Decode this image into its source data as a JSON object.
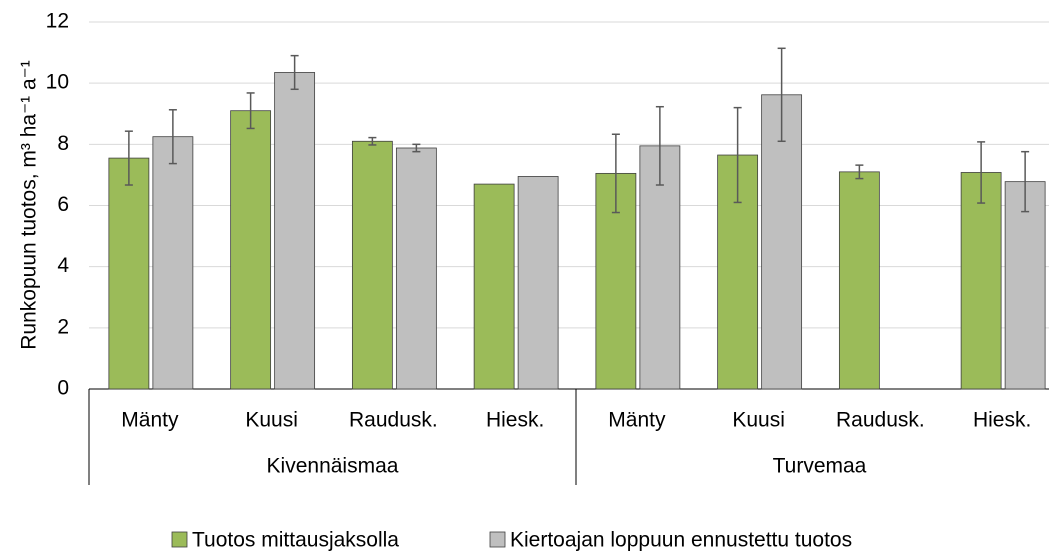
{
  "chart_data": {
    "type": "bar",
    "y_label": "Runkopuun tuotos, m³ ha⁻¹ a⁻¹",
    "categories": [
      "Mänty",
      "Kuusi",
      "Raudusk.",
      "Hiesk.",
      "Mänty",
      "Kuusi",
      "Raudusk.",
      "Hiesk."
    ],
    "groups": [
      {
        "name": "Kivennäismaa",
        "size": 4
      },
      {
        "name": "Turvemaa",
        "size": 4
      }
    ],
    "series": [
      {
        "name": "Tuotos mittausjaksolla",
        "color": "#9bbb59",
        "values": [
          7.55,
          9.1,
          8.1,
          6.7,
          7.05,
          7.65,
          7.1,
          7.08
        ],
        "errors": [
          0.88,
          0.58,
          0.12,
          null,
          1.28,
          1.55,
          0.22,
          1.0
        ]
      },
      {
        "name": "Kiertoajan loppuun ennustettu tuotos",
        "color": "#bfbfbf",
        "values": [
          8.25,
          10.35,
          7.88,
          6.95,
          7.95,
          9.62,
          null,
          6.78
        ],
        "errors": [
          0.88,
          0.55,
          0.12,
          null,
          1.28,
          1.52,
          null,
          0.98
        ]
      }
    ],
    "ylim": [
      0,
      12
    ],
    "yticks": [
      0,
      2,
      4,
      6,
      8,
      10,
      12
    ],
    "grid": true,
    "legend": "bottom"
  }
}
